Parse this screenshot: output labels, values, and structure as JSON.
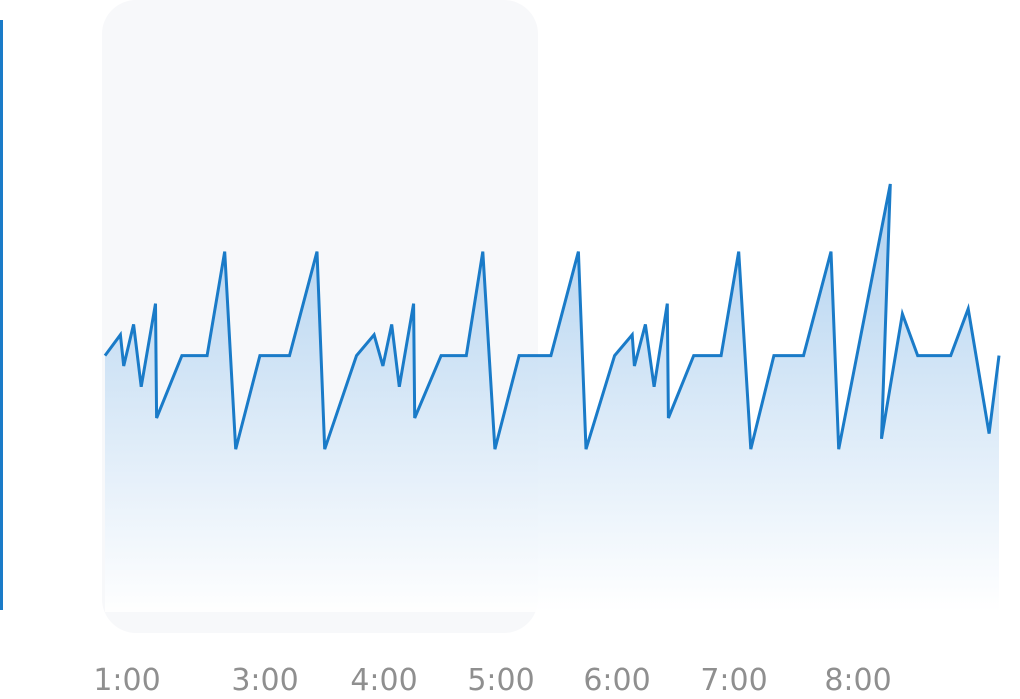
{
  "colors": {
    "line": "#1a7bc8",
    "area_top": "#a9cdee",
    "area_bottom": "#ffffff",
    "left_accent": "#1a7bc8",
    "card": "#f7f8fa",
    "tick_label": "#8f8f8f"
  },
  "chart_data": {
    "type": "area",
    "title": "",
    "xlabel": "",
    "ylabel": "",
    "grid": false,
    "legend": "none",
    "x_ticks": [
      "1:00",
      "3:00",
      "4:00",
      "5:00",
      "6:00",
      "7:00",
      "8:00"
    ],
    "xlim": [
      1.0,
      9.14
    ],
    "ylim": [
      0,
      100
    ],
    "series": [
      {
        "values": [
          [
            1.0,
            47
          ],
          [
            1.14,
            51
          ],
          [
            1.17,
            45
          ],
          [
            1.26,
            53
          ],
          [
            1.33,
            41
          ],
          [
            1.46,
            57
          ],
          [
            1.47,
            35
          ],
          [
            1.7,
            47
          ],
          [
            1.93,
            47
          ],
          [
            2.09,
            67
          ],
          [
            2.19,
            29
          ],
          [
            2.41,
            47
          ],
          [
            2.68,
            47
          ],
          [
            2.93,
            67
          ],
          [
            3.0,
            29
          ],
          [
            3.29,
            47
          ],
          [
            3.45,
            51
          ],
          [
            3.53,
            45
          ],
          [
            3.61,
            53
          ],
          [
            3.68,
            41
          ],
          [
            3.81,
            57
          ],
          [
            3.82,
            35
          ],
          [
            4.06,
            47
          ],
          [
            4.29,
            47
          ],
          [
            4.44,
            67
          ],
          [
            4.55,
            29
          ],
          [
            4.77,
            47
          ],
          [
            5.06,
            47
          ],
          [
            5.31,
            67
          ],
          [
            5.38,
            29
          ],
          [
            5.64,
            47
          ],
          [
            5.8,
            51
          ],
          [
            5.82,
            45
          ],
          [
            5.92,
            53
          ],
          [
            6.0,
            41
          ],
          [
            6.12,
            57
          ],
          [
            6.13,
            35
          ],
          [
            6.36,
            47
          ],
          [
            6.61,
            47
          ],
          [
            6.77,
            67
          ],
          [
            6.88,
            29
          ],
          [
            7.09,
            47
          ],
          [
            7.36,
            47
          ],
          [
            7.61,
            67
          ],
          [
            7.68,
            29
          ],
          [
            8.15,
            80
          ],
          [
            8.07,
            31
          ],
          [
            8.26,
            55
          ],
          [
            8.4,
            47
          ],
          [
            8.7,
            47
          ],
          [
            8.86,
            56
          ],
          [
            9.05,
            32
          ],
          [
            9.14,
            47
          ]
        ]
      }
    ]
  }
}
